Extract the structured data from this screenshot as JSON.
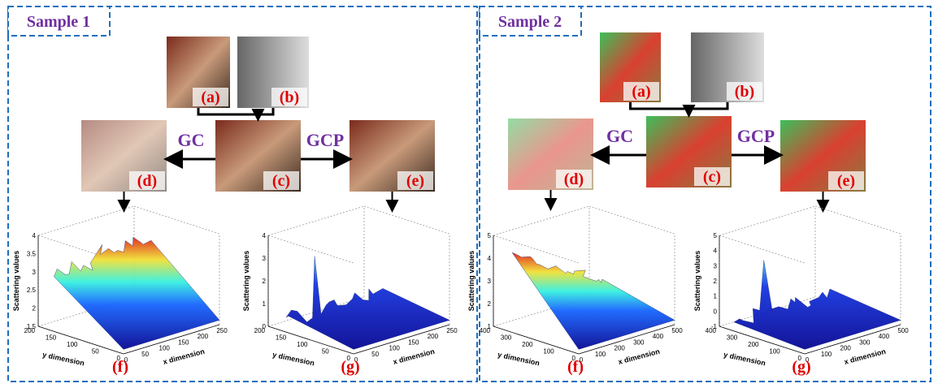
{
  "samples": [
    {
      "title": "Sample 1",
      "images": [
        "(a)",
        "(b)",
        "(c)",
        "(d)",
        "(e)"
      ],
      "methods": [
        "GC",
        "GCP"
      ],
      "plots": [
        {
          "label": "(f)",
          "z_label": "Scattering values",
          "x_label": "x dimension",
          "y_label": "y dimension",
          "zticks": [
            1.5,
            2,
            2.5,
            3,
            3.5,
            4
          ],
          "xticks": [
            0,
            50,
            100,
            150,
            200,
            250
          ],
          "yticks": [
            0,
            50,
            100,
            150,
            200
          ]
        },
        {
          "label": "(g)",
          "z_label": "Scattering values",
          "x_label": "x dimension",
          "y_label": "y dimension",
          "zticks": [
            0,
            1,
            2,
            3,
            4
          ],
          "xticks": [
            0,
            50,
            100,
            150,
            200,
            250
          ],
          "yticks": [
            0,
            50,
            100,
            150,
            200
          ]
        }
      ]
    },
    {
      "title": "Sample 2",
      "images": [
        "(a)",
        "(b)",
        "(c)",
        "(d)",
        "(e)"
      ],
      "methods": [
        "GC",
        "GCP"
      ],
      "plots": [
        {
          "label": "(f)",
          "z_label": "Scattering values",
          "x_label": "x dimension",
          "y_label": "y dimension",
          "zticks": [
            1,
            2,
            3,
            4,
            5
          ],
          "xticks": [
            0,
            100,
            200,
            300,
            400,
            500
          ],
          "yticks": [
            0,
            100,
            200,
            300,
            400
          ]
        },
        {
          "label": "(g)",
          "z_label": "Scattering values",
          "x_label": "x dimension",
          "y_label": "y dimension",
          "zticks": [
            -1,
            0,
            1,
            2,
            3,
            4,
            5
          ],
          "xticks": [
            0,
            100,
            200,
            300,
            400,
            500
          ],
          "yticks": [
            0,
            100,
            200,
            300,
            400
          ]
        }
      ]
    }
  ]
}
